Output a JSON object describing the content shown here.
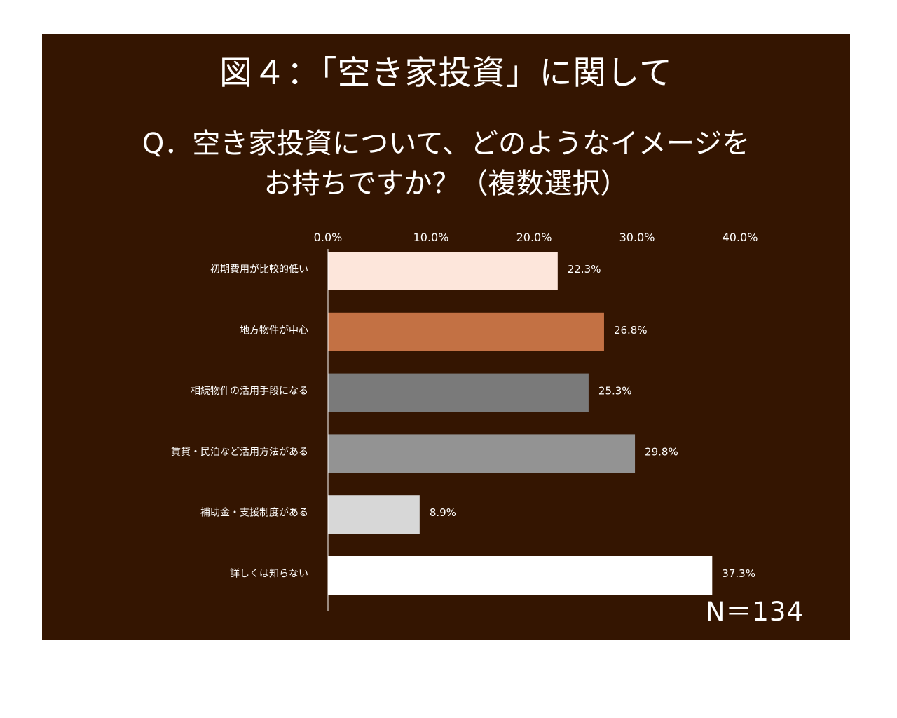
{
  "figure": {
    "title": "図４：「空き家投資」に関して",
    "question_line1": "Q．空き家投資について、どのようなイメージを",
    "question_line2": "お持ちですか？（複数選択）",
    "sample_size": "N＝134",
    "background_color": "#341501"
  },
  "chart_data": {
    "type": "bar",
    "orientation": "horizontal",
    "categories": [
      "初期費用が比較的低い",
      "地方物件が中心",
      "相続物件の活用手段になる",
      "賃貸・民泊など活用方法がある",
      "補助金・支援制度がある",
      "詳しくは知らない"
    ],
    "values": [
      22.3,
      26.8,
      25.3,
      29.8,
      8.9,
      37.3
    ],
    "value_labels": [
      "22.3%",
      "26.8%",
      "25.3%",
      "29.8%",
      "8.9%",
      "37.3%"
    ],
    "colors": [
      "#fde6db",
      "#c37144",
      "#7a7a7a",
      "#939393",
      "#d7d7d7",
      "#ffffff"
    ],
    "xlim": [
      0,
      40
    ],
    "xticks": [
      0,
      10,
      20,
      30,
      40
    ],
    "xtick_labels": [
      "0.0%",
      "10.0%",
      "20.0%",
      "30.0%",
      "40.0%"
    ],
    "x_axis_position": "top",
    "grid": false,
    "legend": "none"
  }
}
